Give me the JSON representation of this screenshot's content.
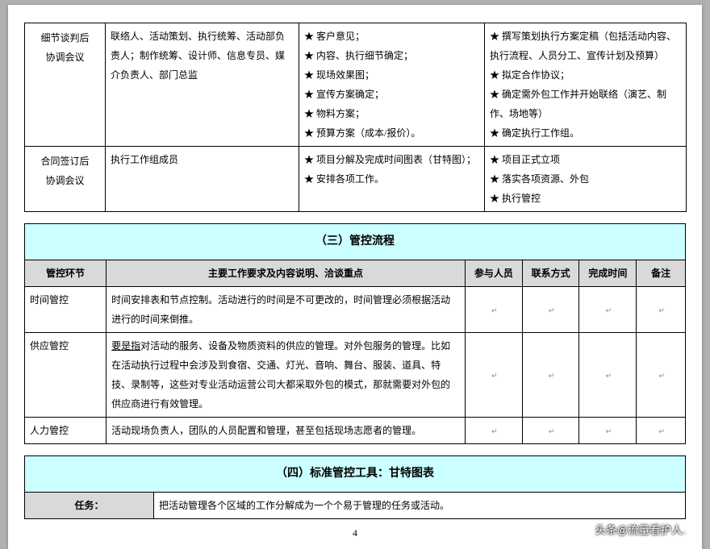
{
  "table1": {
    "rows": [
      {
        "label": "细节谈判后\n协调会议",
        "col2": "联络人、活动策划、执行统筹、活动部负责人；制作统筹、设计师、信息专员、媒介负责人、部门总监",
        "col3": [
          "客户意见；",
          "内容、执行细节确定；",
          "现场效果图；",
          "宣传方案确定；",
          "物料方案；",
          "预算方案（成本/报价）。"
        ],
        "col4": [
          "撰写策划执行方案定稿（包括活动内容、执行流程、人员分工、宣传计划及预算）",
          "拟定合作协议；",
          "确定需外包工作并开始联络（演艺、制作、场地等）",
          "确定执行工作组。"
        ]
      },
      {
        "label": "合同签订后\n协调会议",
        "col2": "执行工作组成员",
        "col3": [
          "项目分解及完成时间图表（甘特图）；",
          "安排各项工作。"
        ],
        "col4": [
          "项目正式立项",
          "落实各项资源、外包",
          "执行管控"
        ]
      }
    ]
  },
  "table2": {
    "section_title": "（三）管控流程",
    "headers": [
      "管控环节",
      "主要工作要求及内容说明、洽谈重点",
      "参与人员",
      "联系方式",
      "完成时间",
      "备注"
    ],
    "rows": [
      {
        "label": "时间管控",
        "desc": "时间安排表和节点控制。活动进行的时间是不可更改的，时间管理必须根据活动进行的时间来倒推。"
      },
      {
        "label": "供应管控",
        "desc_prefix": "要是指",
        "desc_rest": "对活动的服务、设备及物质资料的供应的管理。对外包服务的管理。比如在活动执行过程中会涉及到食宿、交通、灯光、音响、舞台、服装、道具、特技、录制等，这些对专业活动运营公司大都采取外包的模式，那就需要对外包的供应商进行有效管理。"
      },
      {
        "label": "人力管控",
        "desc": "活动现场负责人，团队的人员配置和管理，甚至包括现场志愿者的管理。"
      }
    ]
  },
  "table3": {
    "section_title": "（四）标准管控工具：甘特图表",
    "task_label": "任务：",
    "task_desc": "把活动管理各个区域的工作分解成为一个个易于管理的任务或活动。"
  },
  "watermark": "头条@流量看护人.",
  "page_number": "4",
  "star": "★",
  "colors": {
    "page_bg": "#ffffff",
    "outer_bg": "#b0b0b0",
    "section_hdr_bg": "#ccffff",
    "col_hdr_bg": "#d9d9d9",
    "border": "#000000"
  }
}
